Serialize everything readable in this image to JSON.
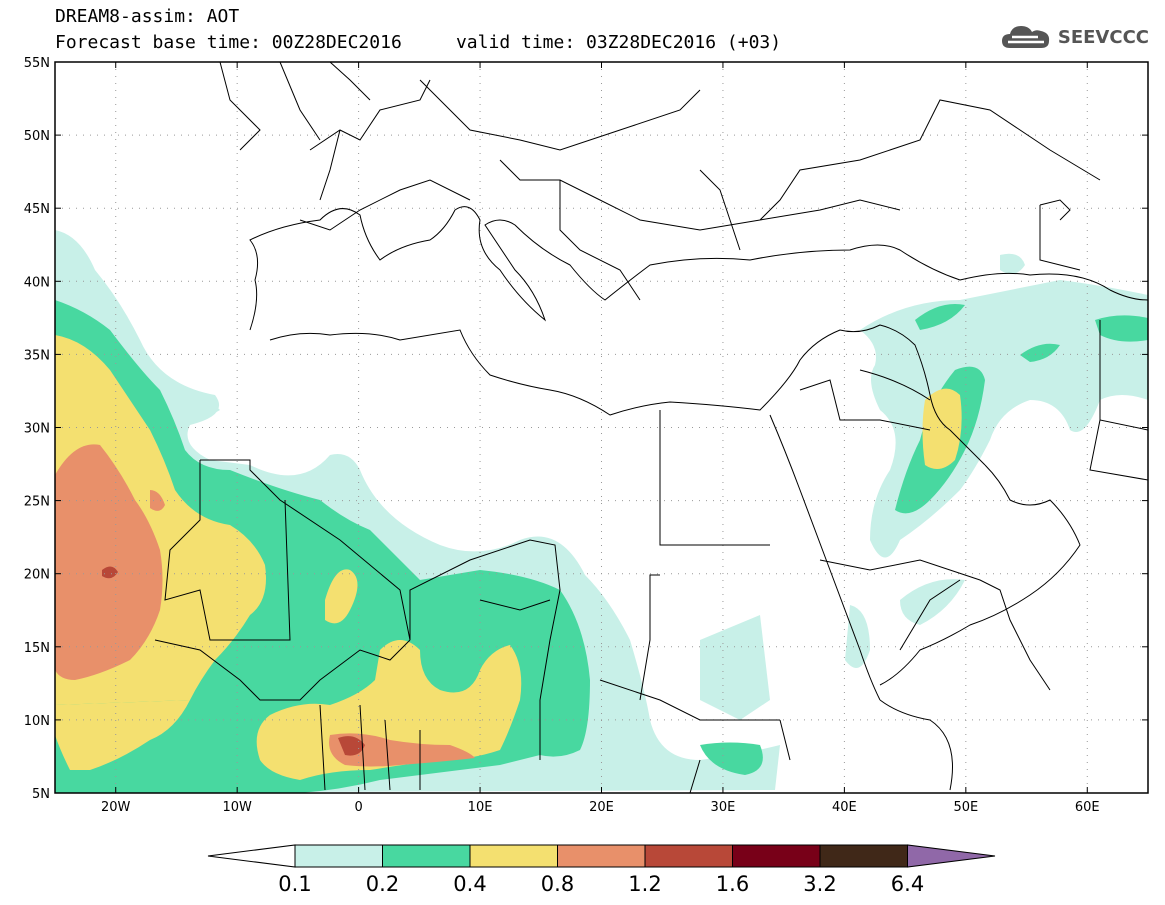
{
  "header": {
    "title_line1": "DREAM8-assim: AOT",
    "title_line2": "Forecast base time: 00Z28DEC2016     valid time: 03Z28DEC2016 (+03)",
    "logo_text": "SEEVCCC",
    "logo_icon": "cloud-icon"
  },
  "map": {
    "lon_range": [
      -25,
      65
    ],
    "lat_range": [
      5,
      55
    ],
    "lat_ticks": [
      {
        "value": 55,
        "label": "55N"
      },
      {
        "value": 50,
        "label": "50N"
      },
      {
        "value": 45,
        "label": "45N"
      },
      {
        "value": 40,
        "label": "40N"
      },
      {
        "value": 35,
        "label": "35N"
      },
      {
        "value": 30,
        "label": "30N"
      },
      {
        "value": 25,
        "label": "25N"
      },
      {
        "value": 20,
        "label": "20N"
      },
      {
        "value": 15,
        "label": "15N"
      },
      {
        "value": 10,
        "label": "10N"
      },
      {
        "value": 5,
        "label": "5N"
      }
    ],
    "lon_ticks": [
      {
        "value": -20,
        "label": "20W"
      },
      {
        "value": -10,
        "label": "10W"
      },
      {
        "value": 0,
        "label": "0"
      },
      {
        "value": 10,
        "label": "10E"
      },
      {
        "value": 20,
        "label": "20E"
      },
      {
        "value": 30,
        "label": "30E"
      },
      {
        "value": 40,
        "label": "40E"
      },
      {
        "value": 50,
        "label": "50E"
      },
      {
        "value": 60,
        "label": "60E"
      }
    ],
    "grid": true,
    "colors": {
      "boundary": "#000000",
      "grid": "#999999"
    }
  },
  "colorbar": {
    "labels": [
      "0.1",
      "0.2",
      "0.4",
      "0.8",
      "1.2",
      "1.6",
      "3.2",
      "6.4"
    ],
    "colors": [
      "#c8f0e8",
      "#48d8a0",
      "#f4e070",
      "#e8906a",
      "#b84838",
      "#780018",
      "#402818"
    ],
    "under_color": "#ffffff",
    "over_color": "#9068a8"
  }
}
